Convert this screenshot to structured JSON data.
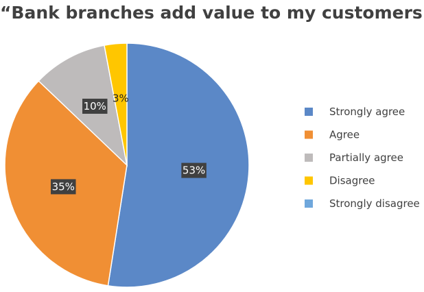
{
  "chart_data": {
    "type": "pie",
    "title": "“Bank branches add value to my customers”?",
    "categories": [
      "Strongly agree",
      "Agree",
      "Partially agree",
      "Disagree",
      "Strongly disagree"
    ],
    "values": [
      53,
      35,
      10,
      3,
      0
    ],
    "labels": [
      "53%",
      "35%",
      "10%",
      "3%",
      ""
    ],
    "colors": [
      "#5B88C7",
      "#F08F34",
      "#BEBBBB",
      "#FFC600",
      "#6FA7DC"
    ],
    "label_dark": [
      false,
      false,
      false,
      true,
      false
    ],
    "start_angle_deg": 0,
    "direction": "clockwise",
    "legend_position": "right"
  }
}
